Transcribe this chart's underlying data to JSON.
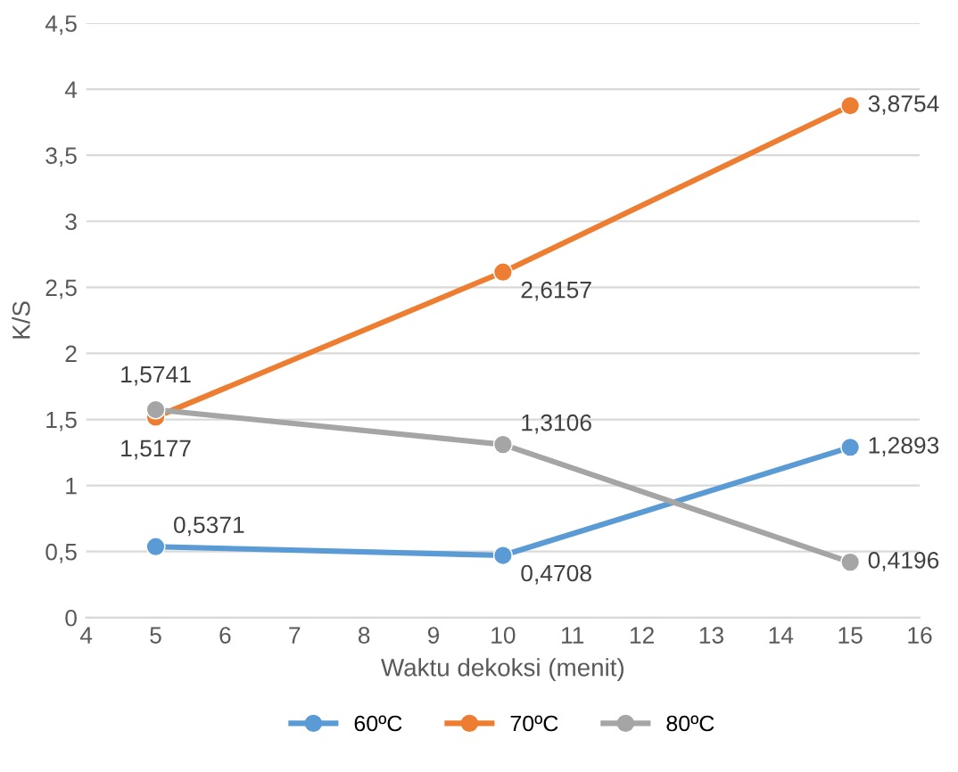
{
  "chart_data": {
    "type": "line",
    "xlabel": "Waktu dekoksi (menit)",
    "ylabel": "K/S",
    "xlim": [
      4,
      16
    ],
    "xticks": [
      4,
      5,
      6,
      7,
      8,
      9,
      10,
      11,
      12,
      13,
      14,
      15,
      16
    ],
    "ylim": [
      0,
      4.5
    ],
    "yticks": [
      0,
      {
        "value": 0.5,
        "label": "0,5"
      },
      1,
      {
        "value": 1.5,
        "label": "1,5"
      },
      2,
      {
        "value": 2.5,
        "label": "2,5"
      },
      3,
      {
        "value": 3.5,
        "label": "3,5"
      },
      4,
      {
        "value": 4.5,
        "label": "4,5"
      }
    ],
    "grid": "y",
    "legend": "bottom",
    "marker": "circle",
    "line_style": "solid",
    "series": [
      {
        "name": "60ºC",
        "color": "#5b9bd5",
        "x": [
          5,
          10,
          15
        ],
        "values": [
          0.5371,
          0.4708,
          1.2893
        ],
        "value_labels": [
          "0,5371",
          "0,4708",
          "1,2893"
        ]
      },
      {
        "name": "70ºC",
        "color": "#ed7d31",
        "x": [
          5,
          10,
          15
        ],
        "values": [
          1.5177,
          2.6157,
          3.8754
        ],
        "value_labels": [
          "1,5177",
          "2,6157",
          "3,8754"
        ]
      },
      {
        "name": "80ºC",
        "color": "#a5a5a5",
        "x": [
          5,
          10,
          15
        ],
        "values": [
          1.5741,
          1.3106,
          0.4196
        ],
        "value_labels": [
          "1,5741",
          "1,3106",
          "0,4196"
        ]
      }
    ]
  }
}
